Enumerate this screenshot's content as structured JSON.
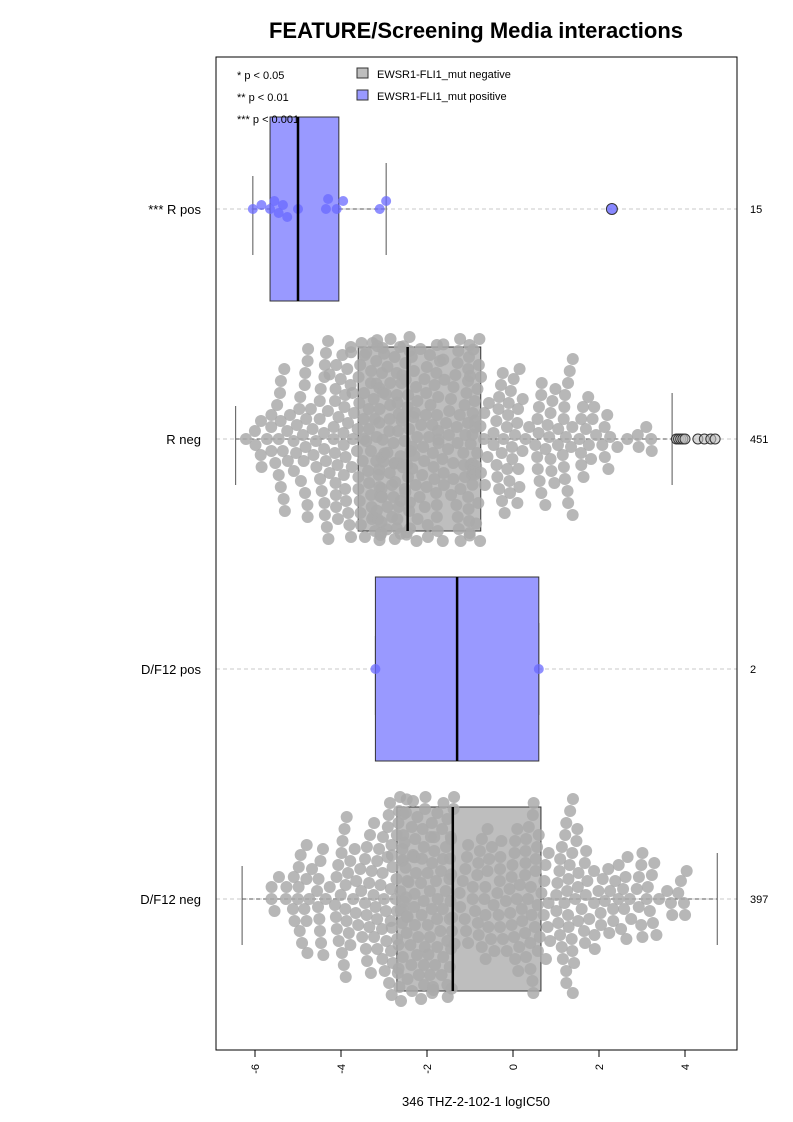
{
  "chart_data": {
    "type": "box",
    "orientation": "horizontal",
    "title": "FEATURE/Screening Media interactions",
    "xlabel": "346 THZ-2-102-1 logIC50",
    "xlim": [
      -6.8,
      5.3
    ],
    "xticks": [
      "-6",
      "-4",
      "-2",
      "0",
      "2",
      "4"
    ],
    "xtick_values": [
      -6,
      -4,
      -2,
      0,
      2,
      4
    ],
    "grid": "dashed horizontal at each group",
    "significance_legend": [
      "* p < 0.05",
      "** p < 0.01",
      "*** p < 0.001"
    ],
    "legend": {
      "placement": "top-left inside",
      "entries": [
        {
          "label": "EWSR1-FLI1_mut negative",
          "color": "#bebebe"
        },
        {
          "label": "EWSR1-FLI1_mut positive",
          "color": "#9999ff"
        }
      ]
    },
    "colors": {
      "negative_fill": "#bebebe",
      "negative_point": "#aaaaaa",
      "positive_fill": "#9999ff",
      "positive_point": "#6a6aff"
    },
    "groups": [
      {
        "label": "*** R pos",
        "n": "15",
        "status": "positive",
        "min": -6.05,
        "q1": -5.65,
        "median": -5.0,
        "q3": -4.05,
        "max": -2.95,
        "points": [
          -6.05,
          -5.85,
          -5.65,
          -5.55,
          -5.45,
          -5.35,
          -5.25,
          -5.0,
          -4.35,
          -4.3,
          -4.1,
          -3.95,
          -3.1,
          -2.95,
          2.3
        ],
        "outliers": [
          2.3
        ]
      },
      {
        "label": "R neg",
        "n": "451",
        "status": "negative",
        "min": -6.45,
        "q1": -3.6,
        "median": -2.45,
        "q3": -0.75,
        "max": 3.7,
        "point_range": [
          -6.45,
          4.7
        ],
        "point_count": 451,
        "outliers": [
          3.8,
          3.85,
          3.9,
          3.95,
          4.0,
          4.3,
          4.45,
          4.6,
          4.7
        ]
      },
      {
        "label": "D/F12 pos",
        "n": "2",
        "status": "positive",
        "min": -3.2,
        "q1": -3.2,
        "median": -1.3,
        "q3": 0.6,
        "max": 0.6,
        "points": [
          -3.2,
          0.6
        ],
        "outliers": []
      },
      {
        "label": "D/F12 neg",
        "n": "397",
        "status": "negative",
        "min": -6.3,
        "q1": -2.7,
        "median": -1.4,
        "q3": 0.65,
        "max": 4.75,
        "point_range": [
          -6.3,
          4.75
        ],
        "point_count": 397,
        "outliers": []
      }
    ]
  }
}
